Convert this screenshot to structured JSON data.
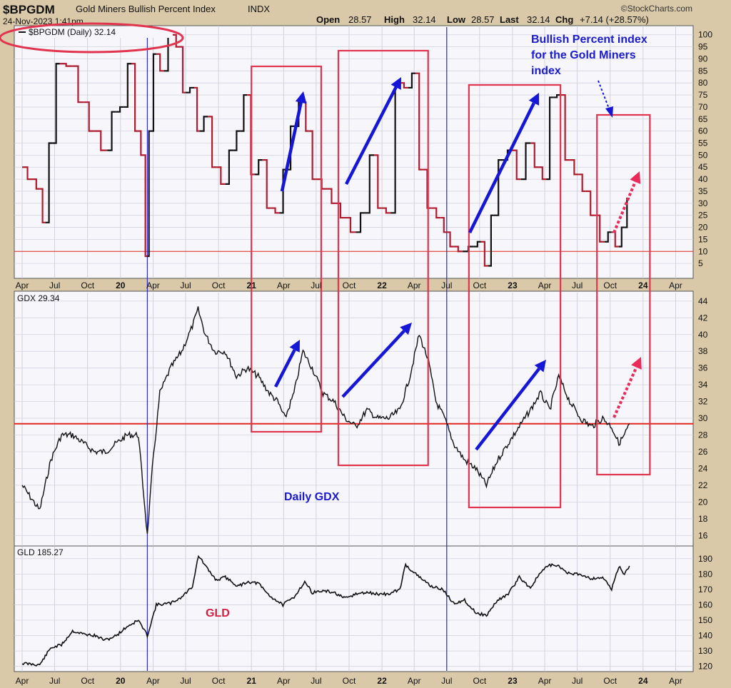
{
  "header": {
    "symbol": "$BPGDM",
    "name": "Gold Miners Bullish Percent Index",
    "exchange": "INDX",
    "date": "24-Nov-2023 1:41pm",
    "open_label": "Open",
    "open": "28.57",
    "high_label": "High",
    "high": "32.14",
    "low_label": "Low",
    "low": "28.57",
    "last_label": "Last",
    "last": "32.14",
    "chg_label": "Chg",
    "chg": "+7.14 (+28.57%)",
    "brand": "©StockCharts.com"
  },
  "annotations": {
    "bpi_note": [
      "Bullish Percent index",
      "for the Gold Miners",
      "index"
    ],
    "gdx_note": "Daily GDX",
    "gld_note": "GLD"
  },
  "colors": {
    "frame": "#d9c9a8",
    "panel_bg": "#f6f6fb",
    "line": "#111111",
    "bearish_line": "#b01a2e",
    "box": "#e0344f",
    "arrow_blue": "#1616d6",
    "arrow_pink": "#ea2b5a",
    "hline": "#e2281e",
    "vline": "#2b2bd8",
    "label_blue": "#1a1ad0",
    "label_red": "#d42040"
  },
  "chart_data": [
    {
      "type": "line",
      "panel": "bpi",
      "legend": "$BPGDM (Daily) 32.14",
      "ylim": [
        0,
        102
      ],
      "y_ticks": [
        5,
        10,
        15,
        20,
        25,
        30,
        35,
        40,
        45,
        50,
        55,
        60,
        65,
        70,
        75,
        80,
        85,
        90,
        95,
        100
      ],
      "x_ticks": [
        "Apr",
        "Jul",
        "Oct",
        "20",
        "Apr",
        "Jul",
        "Oct",
        "21",
        "Apr",
        "Jul",
        "Oct",
        "22",
        "Apr",
        "Jul",
        "Oct",
        "23",
        "Apr",
        "Jul",
        "Oct",
        "24",
        "Apr"
      ],
      "reference_line": 10,
      "x": [
        "2019-04-01",
        "2019-05-01",
        "2019-05-20",
        "2019-06-05",
        "2019-06-25",
        "2019-07-15",
        "2019-08-20",
        "2019-09-20",
        "2019-10-20",
        "2019-11-25",
        "2019-12-20",
        "2020-01-10",
        "2020-02-01",
        "2020-02-20",
        "2020-03-05",
        "2020-03-16",
        "2020-03-25",
        "2020-04-10",
        "2020-05-01",
        "2020-05-25",
        "2020-06-15",
        "2020-07-01",
        "2020-07-25",
        "2020-08-10",
        "2020-09-01",
        "2020-09-25",
        "2020-10-20",
        "2020-11-10",
        "2020-12-01",
        "2020-12-20",
        "2021-01-10",
        "2021-02-01",
        "2021-02-25",
        "2021-03-20",
        "2021-04-10",
        "2021-05-01",
        "2021-05-25",
        "2021-06-10",
        "2021-07-01",
        "2021-08-01",
        "2021-08-25",
        "2021-09-20",
        "2021-10-20",
        "2021-11-15",
        "2021-12-10",
        "2021-12-31",
        "2022-01-25",
        "2022-02-20",
        "2022-03-15",
        "2022-04-05",
        "2022-04-25",
        "2022-05-20",
        "2022-06-15",
        "2022-07-01",
        "2022-07-20",
        "2022-08-15",
        "2022-09-15",
        "2022-10-05",
        "2022-10-25",
        "2022-11-10",
        "2022-12-05",
        "2022-12-31",
        "2023-01-25",
        "2023-02-20",
        "2023-03-15",
        "2023-04-05",
        "2023-04-25",
        "2023-05-15",
        "2023-06-10",
        "2023-07-05",
        "2023-07-25",
        "2023-08-20",
        "2023-09-15",
        "2023-10-05",
        "2023-10-25",
        "2023-11-10",
        "2023-11-24"
      ],
      "y": [
        45,
        40,
        36,
        22,
        55,
        88,
        87,
        72,
        60,
        52,
        68,
        70,
        88,
        60,
        50,
        8,
        60,
        92,
        85,
        100,
        95,
        76,
        78,
        60,
        66,
        45,
        38,
        52,
        60,
        75,
        42,
        48,
        28,
        26,
        44,
        62,
        72,
        60,
        40,
        36,
        30,
        24,
        18,
        26,
        50,
        28,
        26,
        80,
        78,
        84,
        44,
        28,
        24,
        18,
        12,
        10,
        12,
        14,
        4,
        25,
        48,
        52,
        40,
        55,
        45,
        40,
        74,
        75,
        48,
        42,
        35,
        25,
        14,
        18,
        12,
        20,
        32
      ]
    },
    {
      "type": "line",
      "panel": "gdx",
      "legend": "GDX 29.34",
      "ylim": [
        15,
        44.5
      ],
      "y_ticks": [
        16,
        18,
        20,
        22,
        24,
        26,
        28,
        30,
        32,
        34,
        36,
        38,
        40,
        42,
        44
      ],
      "reference_line": 29.34,
      "x": [
        "2019-04-01",
        "2019-05-20",
        "2019-06-20",
        "2019-07-20",
        "2019-08-20",
        "2019-09-20",
        "2019-10-20",
        "2019-11-20",
        "2019-12-20",
        "2020-01-20",
        "2020-02-20",
        "2020-03-16",
        "2020-03-30",
        "2020-04-20",
        "2020-05-20",
        "2020-06-20",
        "2020-07-20",
        "2020-08-05",
        "2020-08-25",
        "2020-09-20",
        "2020-10-20",
        "2020-11-20",
        "2020-12-20",
        "2021-01-20",
        "2021-02-20",
        "2021-03-15",
        "2021-04-05",
        "2021-04-30",
        "2021-05-25",
        "2021-06-20",
        "2021-07-20",
        "2021-08-20",
        "2021-09-20",
        "2021-10-20",
        "2021-11-20",
        "2021-12-20",
        "2022-01-20",
        "2022-02-20",
        "2022-03-20",
        "2022-04-15",
        "2022-05-10",
        "2022-06-01",
        "2022-06-25",
        "2022-07-20",
        "2022-08-20",
        "2022-09-20",
        "2022-10-20",
        "2022-11-20",
        "2022-12-20",
        "2023-01-20",
        "2023-02-20",
        "2023-03-20",
        "2023-04-15",
        "2023-05-10",
        "2023-06-10",
        "2023-07-10",
        "2023-08-10",
        "2023-09-10",
        "2023-10-05",
        "2023-10-25",
        "2023-11-10",
        "2023-11-24"
      ],
      "y": [
        22,
        19,
        25,
        28,
        28,
        27,
        26,
        26,
        27,
        28,
        28,
        16,
        24,
        33,
        36,
        38,
        41,
        43,
        40,
        38,
        38,
        35,
        36,
        35,
        33,
        32,
        30,
        33,
        38,
        36,
        33,
        32,
        30,
        29,
        31,
        30,
        30,
        31,
        35,
        40,
        37,
        32,
        30,
        27,
        25,
        24,
        22,
        25,
        27,
        29,
        31,
        33,
        31,
        35,
        32,
        30,
        29,
        30,
        29,
        27,
        28,
        29.34
      ]
    },
    {
      "type": "line",
      "panel": "gld",
      "legend": "GLD 185.27",
      "ylim": [
        118,
        195
      ],
      "y_ticks": [
        120,
        130,
        140,
        150,
        160,
        170,
        180,
        190
      ],
      "x": [
        "2019-04-01",
        "2019-05-20",
        "2019-06-20",
        "2019-07-20",
        "2019-08-20",
        "2019-09-20",
        "2019-10-20",
        "2019-11-20",
        "2019-12-20",
        "2020-01-20",
        "2020-02-20",
        "2020-03-16",
        "2020-04-10",
        "2020-05-20",
        "2020-06-20",
        "2020-07-20",
        "2020-08-06",
        "2020-09-01",
        "2020-09-25",
        "2020-10-20",
        "2020-11-25",
        "2020-12-20",
        "2021-01-20",
        "2021-02-20",
        "2021-03-30",
        "2021-04-30",
        "2021-05-30",
        "2021-06-20",
        "2021-07-20",
        "2021-08-20",
        "2021-09-20",
        "2021-10-20",
        "2021-11-20",
        "2021-12-20",
        "2022-01-20",
        "2022-02-20",
        "2022-03-08",
        "2022-04-15",
        "2022-05-20",
        "2022-06-20",
        "2022-07-20",
        "2022-08-20",
        "2022-09-20",
        "2022-10-20",
        "2022-11-20",
        "2022-12-20",
        "2023-01-20",
        "2023-02-20",
        "2023-03-20",
        "2023-04-15",
        "2023-05-10",
        "2023-06-10",
        "2023-07-10",
        "2023-08-10",
        "2023-09-10",
        "2023-10-05",
        "2023-10-25",
        "2023-11-10",
        "2023-11-24"
      ],
      "y": [
        122,
        121,
        132,
        134,
        143,
        141,
        140,
        137,
        140,
        146,
        150,
        140,
        160,
        161,
        165,
        172,
        192,
        183,
        176,
        178,
        172,
        175,
        174,
        166,
        160,
        165,
        175,
        168,
        169,
        168,
        164,
        167,
        168,
        167,
        167,
        170,
        186,
        178,
        172,
        170,
        161,
        163,
        155,
        153,
        163,
        167,
        178,
        171,
        181,
        186,
        185,
        180,
        180,
        177,
        178,
        170,
        185,
        180,
        185.27
      ]
    }
  ]
}
